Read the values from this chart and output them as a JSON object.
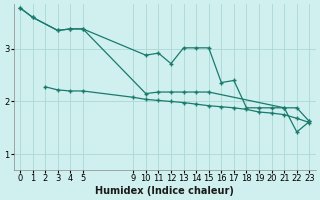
{
  "background_color": "#cff0ee",
  "grid_color": "#aad8d4",
  "line_color": "#1a7a6e",
  "xlabel": "Humidex (Indice chaleur)",
  "xlabel_fontsize": 7,
  "tick_fontsize": 6,
  "xlim": [
    -0.5,
    23.5
  ],
  "ylim": [
    0.7,
    3.85
  ],
  "yticks": [
    1,
    2,
    3
  ],
  "xticks": [
    0,
    1,
    2,
    3,
    4,
    5,
    9,
    10,
    11,
    12,
    13,
    14,
    15,
    16,
    17,
    18,
    19,
    20,
    21,
    22,
    23
  ],
  "series1_x": [
    0,
    1,
    3,
    4,
    5,
    10,
    11,
    12,
    13,
    14,
    15,
    16,
    17,
    18,
    19,
    20,
    21,
    22,
    23
  ],
  "series1_y": [
    3.78,
    3.6,
    3.35,
    3.38,
    3.38,
    2.88,
    2.92,
    2.72,
    3.02,
    3.02,
    3.02,
    2.36,
    2.4,
    1.88,
    1.88,
    1.88,
    1.88,
    1.88,
    1.62
  ],
  "series2_x": [
    0,
    1,
    3,
    4,
    5,
    10,
    11,
    12,
    13,
    14,
    15,
    21,
    22,
    23
  ],
  "series2_y": [
    3.78,
    3.6,
    3.35,
    3.38,
    3.38,
    2.15,
    2.18,
    2.18,
    2.18,
    2.18,
    2.18,
    1.88,
    1.42,
    1.62
  ],
  "series3_x": [
    2,
    3,
    4,
    5,
    9,
    10,
    11,
    12,
    13,
    14,
    15,
    16,
    17,
    18,
    19,
    20,
    21,
    22,
    23
  ],
  "series3_y": [
    2.28,
    2.22,
    2.2,
    2.2,
    2.08,
    2.04,
    2.02,
    2.0,
    1.98,
    1.95,
    1.92,
    1.9,
    1.88,
    1.85,
    1.8,
    1.78,
    1.75,
    1.68,
    1.6
  ]
}
